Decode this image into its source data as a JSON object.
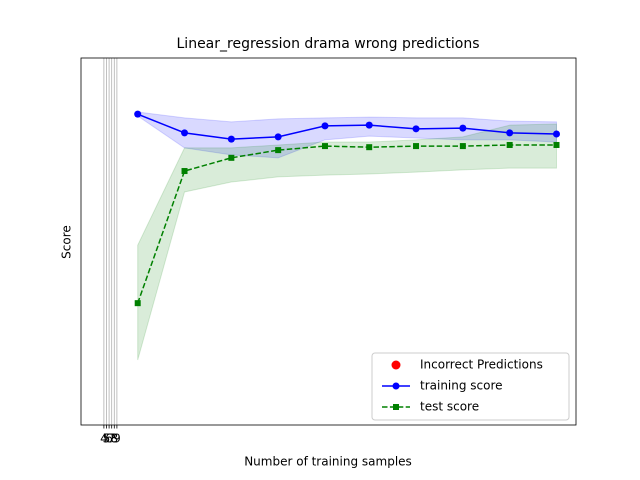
{
  "chart_data": {
    "type": "line",
    "title": "Linear_regression drama wrong predictions",
    "x_label": "Number of training samples",
    "y_label": "Score",
    "x": [
      17,
      35,
      53,
      71,
      89,
      106,
      124,
      142,
      160,
      178
    ],
    "series": [
      {
        "name": "Incorrect Predictions",
        "color": "#ff0000",
        "marker": "circle"
      },
      {
        "name": "training score",
        "color": "#0000ff",
        "marker": "circle",
        "dash": false,
        "values": [
          0.847,
          0.796,
          0.779,
          0.785,
          0.815,
          0.817,
          0.807,
          0.809,
          0.796,
          0.793
        ],
        "lower": [
          0.842,
          0.755,
          0.736,
          0.728,
          0.777,
          0.787,
          0.782,
          0.777,
          0.777,
          0.771
        ],
        "upper": [
          0.853,
          0.837,
          0.826,
          0.834,
          0.837,
          0.839,
          0.837,
          0.837,
          0.828,
          0.826
        ]
      },
      {
        "name": "test score",
        "color": "#008000",
        "marker": "square",
        "dash": true,
        "values": [
          0.332,
          0.692,
          0.728,
          0.749,
          0.76,
          0.757,
          0.76,
          0.76,
          0.763,
          0.763
        ],
        "lower": [
          0.177,
          0.635,
          0.662,
          0.676,
          0.681,
          0.684,
          0.689,
          0.695,
          0.7,
          0.7
        ],
        "upper": [
          0.49,
          0.755,
          0.755,
          0.763,
          0.771,
          0.771,
          0.777,
          0.785,
          0.817,
          0.82
        ]
      }
    ],
    "xlim": [
      -4.8,
      185.5
    ],
    "ylim": [
      0,
      1
    ],
    "xticks": [
      4,
      5,
      6,
      7,
      8,
      9
    ],
    "grid": "x",
    "legend": "lower right"
  }
}
